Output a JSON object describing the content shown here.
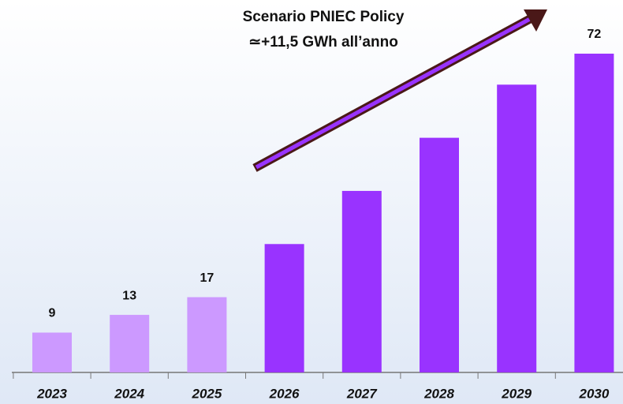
{
  "chart_data": {
    "type": "bar",
    "title": "Scenario PNIEC Policy",
    "subtitle": "≃+11,5 GWh all’anno",
    "categories": [
      "2023",
      "2024",
      "2025",
      "2026",
      "2027",
      "2028",
      "2029",
      "2030"
    ],
    "values": [
      9,
      13,
      17,
      29,
      41,
      53,
      65,
      72
    ],
    "value_labels": [
      "9",
      "13",
      "17",
      null,
      null,
      null,
      null,
      "72"
    ],
    "colors": [
      "#cc99ff",
      "#cc99ff",
      "#cc99ff",
      "#9933ff",
      "#9933ff",
      "#9933ff",
      "#9933ff",
      "#9933ff"
    ]
  }
}
